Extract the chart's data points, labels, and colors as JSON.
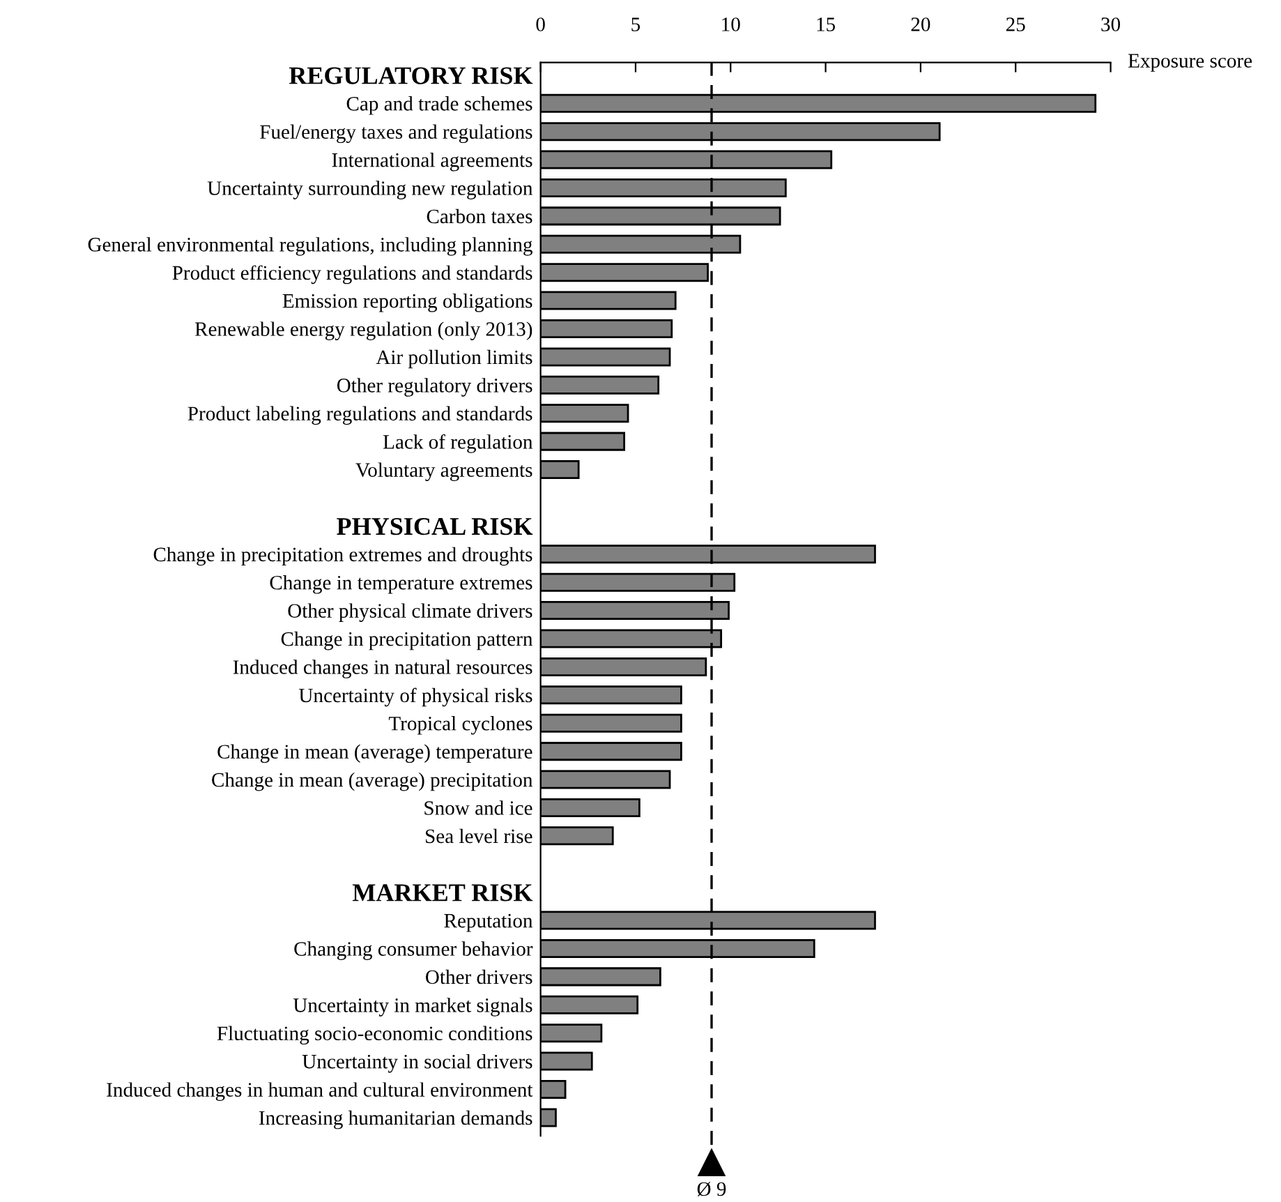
{
  "chart_data": {
    "type": "bar",
    "orientation": "horizontal",
    "xlabel": "Exposure score",
    "categories": [
      "REGULATORY RISK",
      "Cap and trade schemes",
      "Fuel/energy taxes and regulations",
      "International agreements",
      "Uncertainty surrounding new regulation",
      "Carbon taxes",
      "General environmental regulations, including planning",
      "Product efficiency regulations and standards",
      "Emission reporting obligations",
      "Renewable energy regulation (only 2013)",
      "Air pollution limits",
      "Other regulatory drivers",
      "Product labeling regulations and standards",
      "Lack of regulation",
      "Voluntary agreements",
      null,
      "PHYSICAL RISK",
      "Change in precipitation extremes and droughts",
      "Change in temperature extremes",
      "Other physical climate drivers",
      "Change in precipitation pattern",
      "Induced changes in natural resources",
      "Uncertainty of physical risks",
      "Tropical cyclones",
      "Change in mean (average) temperature",
      "Change in mean (average) precipitation",
      "Snow and ice",
      "Sea level rise",
      null,
      "MARKET RISK",
      "Reputation",
      "Changing consumer behavior",
      "Other drivers",
      "Uncertainty in market signals",
      "Fluctuating socio-economic conditions",
      "Uncertainty in social drivers",
      "Induced changes in human and cultural environment",
      "Increasing humanitarian demands"
    ],
    "values": [
      null,
      29.2,
      21.0,
      15.3,
      12.9,
      12.6,
      10.5,
      8.8,
      7.1,
      6.9,
      6.8,
      6.2,
      4.6,
      4.4,
      2.0,
      null,
      null,
      17.6,
      10.2,
      9.9,
      9.5,
      8.7,
      7.4,
      7.4,
      7.4,
      6.8,
      5.2,
      3.8,
      null,
      null,
      17.6,
      14.4,
      6.3,
      5.1,
      3.2,
      2.7,
      1.3,
      0.8
    ],
    "color": "#808080",
    "xlim": [
      0,
      30
    ],
    "xticks": [
      0,
      5,
      10,
      15,
      20,
      25,
      30
    ],
    "grid": false,
    "ref_lines": [
      {
        "axis": "x",
        "value": 9,
        "label": "Ø 9",
        "line_style": "dashed"
      }
    ]
  }
}
